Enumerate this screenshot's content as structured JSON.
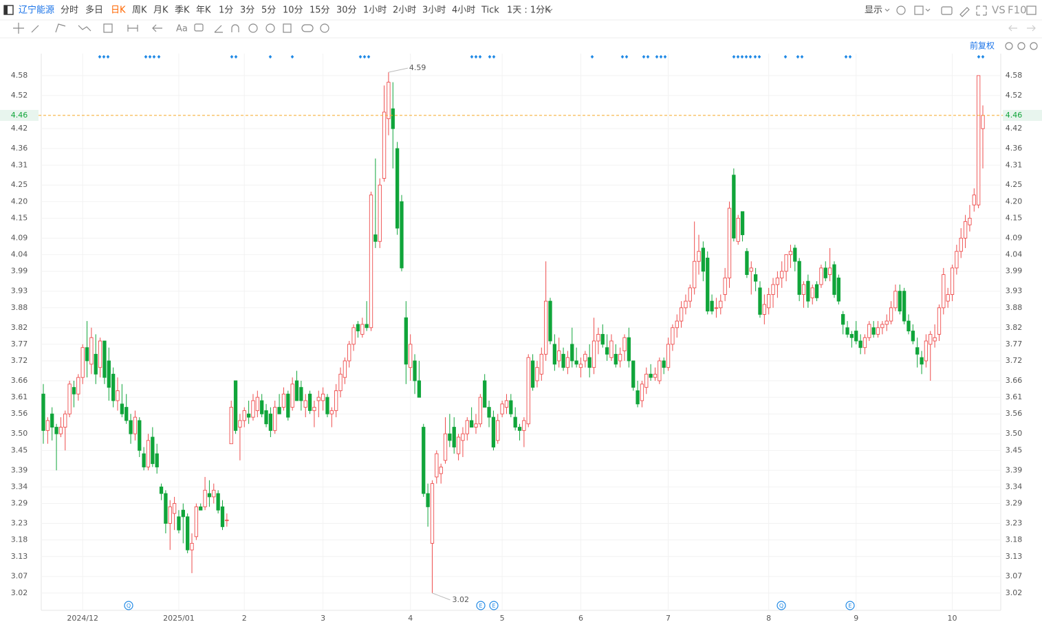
{
  "toolbar": {
    "stock": "辽宁能源",
    "periods": [
      "分时",
      "多日",
      "日K",
      "周K",
      "月K",
      "季K",
      "年K",
      "1分",
      "3分",
      "5分",
      "10分",
      "15分",
      "30分",
      "1小时",
      "2小时",
      "3小时",
      "4小时",
      "Tick"
    ],
    "interval": "1天 : 1分K",
    "display": "显示",
    "vs": "VS",
    "f10": "F10",
    "font_tool": "Aa",
    "adjust": "前复权"
  },
  "chart_data": {
    "type": "candlestick",
    "up_color": "#ee4b4b",
    "down_color": "#10a53a",
    "grid": true,
    "ylim": [
      2.97,
      4.64
    ],
    "yticks": [
      4.58,
      4.52,
      4.42,
      4.36,
      4.31,
      4.25,
      {
        "value": 4.2,
        "label": "4.20"
      },
      4.15,
      4.09,
      4.04,
      3.99,
      3.93,
      3.88,
      3.82,
      3.77,
      3.72,
      3.66,
      3.61,
      3.56,
      {
        "value": 3.5,
        "label": "3.50"
      },
      3.45,
      3.39,
      3.34,
      3.29,
      3.23,
      3.18,
      3.13,
      3.07,
      3.02
    ],
    "last_price": 4.46,
    "high_label": 4.59,
    "low_label": 3.02,
    "events": [
      "Q",
      "E",
      "E",
      "Q",
      "E"
    ],
    "categories": [
      null,
      null,
      null,
      null,
      null,
      null,
      null,
      null,
      null,
      "2024/12",
      null,
      null,
      null,
      null,
      null,
      null,
      null,
      null,
      null,
      null,
      null,
      null,
      null,
      null,
      null,
      null,
      null,
      null,
      null,
      null,
      null,
      "2025/01",
      null,
      null,
      null,
      null,
      null,
      null,
      null,
      null,
      null,
      null,
      null,
      null,
      null,
      null,
      "2",
      null,
      null,
      null,
      null,
      null,
      null,
      null,
      null,
      null,
      null,
      null,
      null,
      null,
      null,
      null,
      null,
      null,
      "3",
      null,
      null,
      null,
      null,
      null,
      null,
      null,
      null,
      null,
      null,
      null,
      null,
      null,
      null,
      null,
      null,
      null,
      null,
      null,
      "4",
      null,
      null,
      null,
      null,
      null,
      null,
      null,
      null,
      null,
      null,
      null,
      null,
      null,
      null,
      null,
      null,
      null,
      null,
      null,
      null,
      "5",
      null,
      null,
      null,
      null,
      null,
      null,
      null,
      null,
      null,
      null,
      null,
      null,
      null,
      null,
      null,
      null,
      null,
      "6",
      null,
      null,
      null,
      null,
      null,
      null,
      null,
      null,
      null,
      null,
      null,
      null,
      null,
      null,
      null,
      null,
      null,
      null,
      null,
      "7",
      null,
      null,
      null,
      null,
      null,
      null,
      null,
      null,
      null,
      null,
      null,
      null,
      null,
      null,
      null,
      null,
      null,
      null,
      null,
      null,
      null,
      null,
      "8",
      null,
      null,
      null,
      null,
      null,
      null,
      null,
      null,
      null,
      null,
      null,
      null,
      null,
      null,
      null,
      null,
      null,
      null,
      null,
      "9",
      null,
      null,
      null,
      null,
      null,
      null,
      null,
      null,
      null,
      null,
      null,
      null,
      null,
      null,
      null,
      null,
      null,
      null,
      null,
      null,
      null,
      "10",
      null,
      null,
      null,
      null,
      null,
      null,
      null
    ],
    "candles": [
      [
        3.62,
        3.65,
        3.47,
        3.51
      ],
      [
        3.51,
        3.55,
        3.47,
        3.54
      ],
      [
        3.56,
        3.58,
        3.48,
        3.52
      ],
      [
        3.52,
        3.53,
        3.39,
        3.5
      ],
      [
        3.5,
        3.55,
        3.49,
        3.52
      ],
      [
        3.52,
        3.57,
        3.45,
        3.56
      ],
      [
        3.56,
        3.66,
        3.55,
        3.65
      ],
      [
        3.64,
        3.66,
        3.58,
        3.62
      ],
      [
        3.62,
        3.68,
        3.6,
        3.67
      ],
      [
        3.67,
        3.77,
        3.65,
        3.76
      ],
      [
        3.76,
        3.84,
        3.67,
        3.72
      ],
      [
        3.71,
        3.82,
        3.68,
        3.79
      ],
      [
        3.74,
        3.8,
        3.65,
        3.68
      ],
      [
        3.7,
        3.79,
        3.67,
        3.78
      ],
      [
        3.78,
        3.78,
        3.65,
        3.67
      ],
      [
        3.72,
        3.76,
        3.6,
        3.64
      ],
      [
        3.68,
        3.7,
        3.58,
        3.6
      ],
      [
        3.6,
        3.67,
        3.57,
        3.63
      ],
      [
        3.59,
        3.65,
        3.55,
        3.56
      ],
      [
        3.58,
        3.62,
        3.53,
        3.54
      ],
      [
        3.54,
        3.56,
        3.47,
        3.5
      ],
      [
        3.5,
        3.57,
        3.48,
        3.55
      ],
      [
        3.54,
        3.55,
        3.43,
        3.45
      ],
      [
        3.44,
        3.46,
        3.39,
        3.4
      ],
      [
        3.4,
        3.5,
        3.39,
        3.48
      ],
      [
        3.49,
        3.52,
        3.4,
        3.41
      ],
      [
        3.44,
        3.47,
        3.38,
        3.4
      ],
      [
        3.34,
        3.35,
        3.3,
        3.32
      ],
      [
        3.32,
        3.33,
        3.2,
        3.23
      ],
      [
        3.23,
        3.3,
        3.15,
        3.28
      ],
      [
        3.26,
        3.31,
        3.21,
        3.29
      ],
      [
        3.25,
        3.27,
        3.2,
        3.21
      ],
      [
        3.27,
        3.29,
        3.17,
        3.25
      ],
      [
        3.25,
        3.26,
        3.14,
        3.15
      ],
      [
        3.15,
        3.2,
        3.08,
        3.17
      ],
      [
        3.19,
        3.29,
        3.18,
        3.28
      ],
      [
        3.28,
        3.29,
        3.27,
        3.27
      ],
      [
        3.28,
        3.37,
        3.27,
        3.33
      ],
      [
        3.32,
        3.36,
        3.28,
        3.31
      ],
      [
        3.31,
        3.35,
        3.29,
        3.33
      ],
      [
        3.32,
        3.33,
        3.26,
        3.27
      ],
      [
        3.28,
        3.3,
        3.21,
        3.22
      ],
      [
        3.24,
        3.26,
        3.22,
        3.24
      ],
      [
        3.47,
        3.6,
        3.47,
        3.58
      ],
      [
        3.66,
        3.66,
        3.5,
        3.51
      ],
      [
        3.52,
        3.56,
        3.42,
        3.54
      ],
      [
        3.54,
        3.58,
        3.52,
        3.57
      ],
      [
        3.56,
        3.6,
        3.53,
        3.55
      ],
      [
        3.55,
        3.62,
        3.54,
        3.6
      ],
      [
        3.57,
        3.63,
        3.55,
        3.61
      ],
      [
        3.6,
        3.62,
        3.55,
        3.56
      ],
      [
        3.57,
        3.59,
        3.52,
        3.53
      ],
      [
        3.56,
        3.58,
        3.49,
        3.51
      ],
      [
        3.51,
        3.6,
        3.5,
        3.58
      ],
      [
        3.58,
        3.62,
        3.56,
        3.56
      ],
      [
        3.58,
        3.64,
        3.57,
        3.62
      ],
      [
        3.62,
        3.63,
        3.54,
        3.55
      ],
      [
        3.58,
        3.67,
        3.57,
        3.65
      ],
      [
        3.66,
        3.69,
        3.6,
        3.6
      ],
      [
        3.64,
        3.66,
        3.57,
        3.6
      ],
      [
        3.58,
        3.62,
        3.55,
        3.6
      ],
      [
        3.62,
        3.63,
        3.56,
        3.57
      ],
      [
        3.57,
        3.6,
        3.52,
        3.58
      ],
      [
        3.6,
        3.63,
        3.55,
        3.61
      ],
      [
        3.6,
        3.64,
        3.57,
        3.62
      ],
      [
        3.61,
        3.62,
        3.55,
        3.56
      ],
      [
        3.56,
        3.58,
        3.52,
        3.57
      ],
      [
        3.57,
        3.65,
        3.55,
        3.63
      ],
      [
        3.63,
        3.7,
        3.61,
        3.68
      ],
      [
        3.67,
        3.73,
        3.65,
        3.72
      ],
      [
        3.72,
        3.78,
        3.7,
        3.77
      ],
      [
        3.77,
        3.83,
        3.75,
        3.82
      ],
      [
        3.83,
        3.84,
        3.79,
        3.81
      ],
      [
        3.8,
        3.85,
        3.79,
        3.83
      ],
      [
        3.83,
        3.9,
        3.81,
        3.82
      ],
      [
        3.82,
        4.23,
        3.81,
        4.22
      ],
      [
        4.1,
        4.33,
        4.06,
        4.08
      ],
      [
        4.08,
        4.27,
        4.06,
        4.25
      ],
      [
        4.27,
        4.55,
        4.26,
        4.47
      ],
      [
        4.45,
        4.59,
        4.4,
        4.56
      ],
      [
        4.48,
        4.56,
        4.3,
        4.42
      ],
      [
        4.36,
        4.38,
        4.1,
        4.12
      ],
      [
        4.2,
        4.22,
        3.99,
        4.0
      ],
      [
        3.85,
        3.9,
        3.65,
        3.71
      ],
      [
        3.7,
        3.8,
        3.66,
        3.77
      ],
      [
        3.72,
        3.74,
        3.62,
        3.66
      ],
      [
        3.66,
        3.72,
        3.61,
        3.61
      ],
      [
        3.52,
        3.53,
        3.31,
        3.32
      ],
      [
        3.32,
        3.35,
        3.22,
        3.28
      ],
      [
        3.17,
        3.36,
        3.02,
        3.35
      ],
      [
        3.37,
        3.45,
        3.35,
        3.44
      ],
      [
        3.38,
        3.41,
        3.35,
        3.4
      ],
      [
        3.42,
        3.55,
        3.41,
        3.5
      ],
      [
        3.5,
        3.56,
        3.46,
        3.48
      ],
      [
        3.52,
        3.55,
        3.44,
        3.46
      ],
      [
        3.44,
        3.5,
        3.42,
        3.49
      ],
      [
        3.48,
        3.52,
        3.43,
        3.5
      ],
      [
        3.5,
        3.55,
        3.48,
        3.54
      ],
      [
        3.54,
        3.58,
        3.52,
        3.52
      ],
      [
        3.52,
        3.56,
        3.5,
        3.53
      ],
      [
        3.53,
        3.62,
        3.52,
        3.61
      ],
      [
        3.66,
        3.68,
        3.58,
        3.58
      ],
      [
        3.58,
        3.6,
        3.52,
        3.55
      ],
      [
        3.55,
        3.57,
        3.45,
        3.46
      ],
      [
        3.48,
        3.56,
        3.47,
        3.54
      ],
      [
        3.56,
        3.6,
        3.55,
        3.59
      ],
      [
        3.58,
        3.62,
        3.56,
        3.6
      ],
      [
        3.6,
        3.62,
        3.55,
        3.56
      ],
      [
        3.55,
        3.58,
        3.51,
        3.52
      ],
      [
        3.52,
        3.53,
        3.48,
        3.51
      ],
      [
        3.51,
        3.55,
        3.46,
        3.54
      ],
      [
        3.53,
        3.74,
        3.52,
        3.73
      ],
      [
        3.72,
        3.74,
        3.63,
        3.64
      ],
      [
        3.66,
        3.72,
        3.64,
        3.7
      ],
      [
        3.68,
        3.76,
        3.66,
        3.74
      ],
      [
        3.74,
        4.02,
        3.72,
        3.9
      ],
      [
        3.9,
        3.91,
        3.77,
        3.78
      ],
      [
        3.77,
        3.8,
        3.69,
        3.71
      ],
      [
        3.72,
        3.79,
        3.7,
        3.75
      ],
      [
        3.74,
        3.76,
        3.69,
        3.7
      ],
      [
        3.7,
        3.75,
        3.68,
        3.73
      ],
      [
        3.77,
        3.82,
        3.7,
        3.72
      ],
      [
        3.72,
        3.76,
        3.7,
        3.71
      ],
      [
        3.7,
        3.73,
        3.67,
        3.71
      ],
      [
        3.72,
        3.75,
        3.7,
        3.74
      ],
      [
        3.73,
        3.77,
        3.67,
        3.7
      ],
      [
        3.7,
        3.85,
        3.68,
        3.78
      ],
      [
        3.78,
        3.82,
        3.74,
        3.8
      ],
      [
        3.8,
        3.83,
        3.76,
        3.77
      ],
      [
        3.76,
        3.8,
        3.72,
        3.74
      ],
      [
        3.73,
        3.8,
        3.72,
        3.78
      ],
      [
        3.74,
        3.77,
        3.7,
        3.71
      ],
      [
        3.72,
        3.76,
        3.7,
        3.74
      ],
      [
        3.75,
        3.8,
        3.72,
        3.79
      ],
      [
        3.79,
        3.82,
        3.7,
        3.72
      ],
      [
        3.72,
        3.72,
        3.63,
        3.64
      ],
      [
        3.63,
        3.66,
        3.58,
        3.59
      ],
      [
        3.6,
        3.66,
        3.58,
        3.65
      ],
      [
        3.64,
        3.7,
        3.62,
        3.68
      ],
      [
        3.68,
        3.71,
        3.66,
        3.67
      ],
      [
        3.67,
        3.7,
        3.66,
        3.68
      ],
      [
        3.66,
        3.73,
        3.65,
        3.72
      ],
      [
        3.72,
        3.73,
        3.68,
        3.7
      ],
      [
        3.7,
        3.79,
        3.69,
        3.77
      ],
      [
        3.77,
        3.83,
        3.75,
        3.82
      ],
      [
        3.82,
        3.86,
        3.79,
        3.84
      ],
      [
        3.84,
        3.9,
        3.82,
        3.88
      ],
      [
        3.88,
        3.92,
        3.86,
        3.9
      ],
      [
        3.9,
        3.95,
        3.88,
        3.94
      ],
      [
        3.94,
        4.14,
        3.92,
        4.02
      ],
      [
        4.02,
        4.1,
        3.98,
        4.05
      ],
      [
        4.06,
        4.08,
        3.96,
        3.99
      ],
      [
        4.03,
        4.05,
        3.86,
        3.87
      ],
      [
        3.9,
        3.92,
        3.86,
        3.87
      ],
      [
        3.88,
        3.91,
        3.85,
        3.88
      ],
      [
        3.88,
        3.92,
        3.86,
        3.9
      ],
      [
        3.92,
        4.0,
        3.9,
        3.97
      ],
      [
        3.97,
        4.2,
        3.94,
        4.18
      ],
      [
        4.28,
        4.3,
        4.08,
        4.09
      ],
      [
        4.08,
        4.16,
        4.07,
        4.15
      ],
      [
        4.17,
        4.17,
        4.08,
        4.1
      ],
      [
        4.05,
        4.06,
        3.97,
        3.98
      ],
      [
        3.99,
        4.02,
        3.92,
        4.0
      ],
      [
        3.98,
        4.0,
        3.93,
        3.96
      ],
      [
        3.94,
        3.96,
        3.85,
        3.86
      ],
      [
        3.86,
        3.92,
        3.83,
        3.89
      ],
      [
        3.88,
        3.94,
        3.86,
        3.92
      ],
      [
        3.92,
        3.97,
        3.88,
        3.95
      ],
      [
        3.95,
        3.99,
        3.91,
        3.97
      ],
      [
        3.97,
        4.02,
        3.94,
        3.99
      ],
      [
        3.99,
        4.03,
        3.96,
        4.04
      ],
      [
        4.04,
        4.07,
        4.0,
        4.05
      ],
      [
        4.06,
        4.07,
        3.99,
        4.02
      ],
      [
        4.02,
        4.03,
        3.9,
        3.92
      ],
      [
        3.92,
        3.96,
        3.88,
        3.95
      ],
      [
        3.96,
        3.98,
        3.88,
        3.9
      ],
      [
        3.91,
        3.95,
        3.89,
        3.94
      ],
      [
        3.95,
        3.96,
        3.9,
        3.91
      ],
      [
        3.95,
        4.01,
        3.94,
        4.0
      ],
      [
        4.0,
        4.02,
        3.96,
        3.97
      ],
      [
        3.98,
        4.06,
        3.96,
        4.0
      ],
      [
        4.01,
        4.02,
        3.91,
        3.92
      ],
      [
        3.97,
        3.98,
        3.89,
        3.9
      ],
      [
        3.86,
        3.87,
        3.8,
        3.83
      ],
      [
        3.82,
        3.84,
        3.79,
        3.8
      ],
      [
        3.8,
        3.81,
        3.76,
        3.79
      ],
      [
        3.81,
        3.84,
        3.77,
        3.78
      ],
      [
        3.78,
        3.8,
        3.74,
        3.76
      ],
      [
        3.76,
        3.8,
        3.74,
        3.79
      ],
      [
        3.79,
        3.84,
        3.78,
        3.83
      ],
      [
        3.82,
        3.84,
        3.79,
        3.8
      ],
      [
        3.8,
        3.84,
        3.79,
        3.82
      ],
      [
        3.82,
        3.84,
        3.8,
        3.83
      ],
      [
        3.83,
        3.86,
        3.81,
        3.84
      ],
      [
        3.84,
        3.9,
        3.83,
        3.88
      ],
      [
        3.88,
        3.95,
        3.87,
        3.93
      ],
      [
        3.93,
        3.95,
        3.86,
        3.87
      ],
      [
        3.93,
        3.94,
        3.83,
        3.84
      ],
      [
        3.84,
        3.86,
        3.8,
        3.81
      ],
      [
        3.81,
        3.83,
        3.77,
        3.78
      ],
      [
        3.76,
        3.79,
        3.7,
        3.74
      ],
      [
        3.73,
        3.75,
        3.68,
        3.71
      ],
      [
        3.72,
        3.8,
        3.7,
        3.78
      ],
      [
        3.77,
        3.81,
        3.66,
        3.8
      ],
      [
        3.78,
        3.83,
        3.76,
        3.79
      ],
      [
        3.8,
        3.89,
        3.78,
        3.88
      ],
      [
        3.88,
        4.0,
        3.86,
        3.98
      ],
      [
        3.9,
        3.94,
        3.88,
        3.92
      ],
      [
        3.92,
        4.01,
        3.9,
        4.0
      ],
      [
        4.0,
        4.07,
        3.98,
        4.05
      ],
      [
        4.05,
        4.12,
        4.03,
        4.09
      ],
      [
        4.09,
        4.16,
        4.06,
        4.14
      ],
      [
        4.13,
        4.19,
        4.11,
        4.15
      ],
      [
        4.19,
        4.24,
        4.17,
        4.22
      ],
      [
        4.19,
        4.58,
        4.18,
        4.58
      ],
      [
        4.42,
        4.49,
        4.3,
        4.46
      ]
    ]
  }
}
